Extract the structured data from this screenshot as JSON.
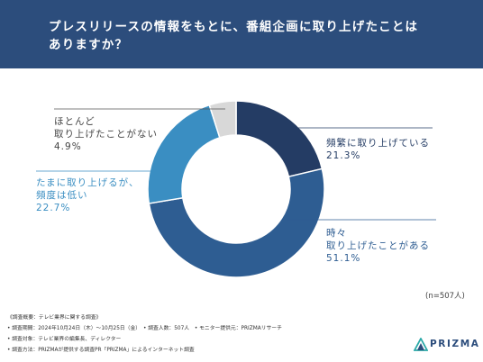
{
  "header": {
    "title_line1": "プレスリリースの情報をもとに、番組企画に取り上げたことは",
    "title_line2": "ありますか？"
  },
  "chart_data": {
    "type": "pie",
    "series": [
      {
        "name": "頻繁に取り上げている",
        "value": 21.3,
        "value_label": "21.3%",
        "color": "#243c64"
      },
      {
        "name": "時々取り上げたことがある",
        "value": 51.1,
        "value_label": "51.1%",
        "color": "#2e5d92"
      },
      {
        "name": "たまに取り上げるが、頻度は低い",
        "value": 22.7,
        "value_label": "22.7%",
        "color": "#3a8ec2"
      },
      {
        "name": "ほとんど取り上げたことがない",
        "value": 4.9,
        "value_label": "4.9%",
        "color": "#d8d8d8"
      }
    ],
    "labels": {
      "frequent": [
        "頻繁に取り上げている",
        "21.3%"
      ],
      "sometimes": [
        "時々",
        "取り上げたことがある",
        "51.1%"
      ],
      "rarely": [
        "たまに取り上げるが、",
        "頻度は低い",
        "22.7%"
      ],
      "almost_never": [
        "ほとんど",
        "取り上げたことがない",
        "4.9%"
      ]
    },
    "sample_size": "(n=507人)"
  },
  "notes": {
    "heading": "《調査概要：テレビ業界に関する調査》",
    "period": "• 調査期間：2024年10月24日（木）～10月25日（金）　• 調査人数：507人　• モニター提供元：PRIZMAリサーチ",
    "target": "• 調査対象：テレビ業界の編集長、ディレクター",
    "method": "• 調査方法：PRIZMAが提供する調査PR「PRIZMA」によるインターネット調査"
  },
  "logo": {
    "text": "PRIZMA"
  },
  "colors": {
    "header_bg": "#2c4d7c",
    "dark_label": "#243c64",
    "mid_label": "#2e5d92",
    "light_label": "#3a8ec2",
    "gray_label": "#444444"
  }
}
